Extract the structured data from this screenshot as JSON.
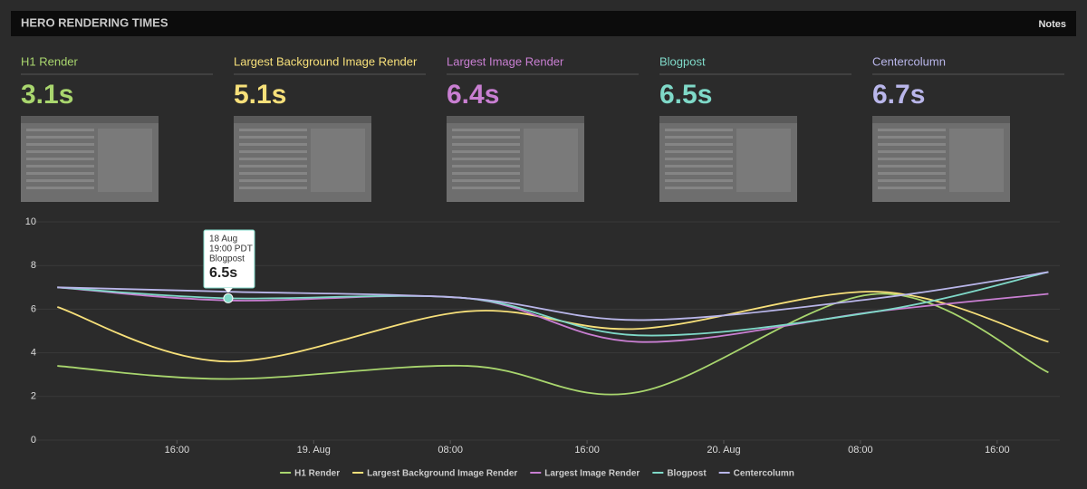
{
  "header": {
    "title": "HERO RENDERING TIMES",
    "notes": "Notes"
  },
  "cards": [
    {
      "label": "H1 Render",
      "value": "3.1s",
      "color": "#a9d66e"
    },
    {
      "label": "Largest Background Image Render",
      "value": "5.1s",
      "color": "#f7e07a"
    },
    {
      "label": "Largest Image Render",
      "value": "6.4s",
      "color": "#c97fd2"
    },
    {
      "label": "Blogpost",
      "value": "6.5s",
      "color": "#7fd9c8"
    },
    {
      "label": "Centercolumn",
      "value": "6.7s",
      "color": "#b9b6ea"
    }
  ],
  "chart_data": {
    "type": "line",
    "x": [
      "18 Aug 09:00",
      "18 Aug 19:00",
      "19 Aug 09:00",
      "19 Aug 19:00",
      "20 Aug 09:00",
      "20 Aug 19:00"
    ],
    "series": [
      {
        "name": "H1 Render",
        "color": "#a9d66e",
        "values": [
          3.4,
          2.8,
          3.4,
          2.2,
          6.7,
          3.1
        ]
      },
      {
        "name": "Largest Background Image Render",
        "color": "#f7e07a",
        "values": [
          6.1,
          3.6,
          5.9,
          5.1,
          6.8,
          4.5
        ]
      },
      {
        "name": "Largest Image Render",
        "color": "#c97fd2",
        "values": [
          7.0,
          6.4,
          6.5,
          4.5,
          5.9,
          6.7
        ]
      },
      {
        "name": "Blogpost",
        "color": "#7fd9c8",
        "values": [
          7.0,
          6.5,
          6.5,
          4.8,
          5.9,
          7.7
        ]
      },
      {
        "name": "Centercolumn",
        "color": "#b9b6ea",
        "values": [
          7.0,
          6.8,
          6.5,
          5.5,
          6.5,
          7.7
        ]
      }
    ],
    "xlim": [
      "18 Aug 07:30",
      "20 Aug 19:40"
    ],
    "xticks": [
      {
        "value": "18 Aug 16:00",
        "label": "16:00"
      },
      {
        "value": "19 Aug 00:00",
        "label": "19. Aug"
      },
      {
        "value": "19 Aug 08:00",
        "label": "08:00"
      },
      {
        "value": "19 Aug 16:00",
        "label": "16:00"
      },
      {
        "value": "20 Aug 00:00",
        "label": "20. Aug"
      },
      {
        "value": "20 Aug 08:00",
        "label": "08:00"
      },
      {
        "value": "20 Aug 16:00",
        "label": "16:00"
      }
    ],
    "ylim": [
      0,
      10
    ],
    "yticks": [
      0,
      2,
      4,
      6,
      8,
      10
    ],
    "grid": true,
    "tooltip": {
      "series": 3,
      "point": 1,
      "date": "18 Aug",
      "time": "19:00 PDT",
      "name": "Blogpost",
      "value_label": "6.5s"
    }
  }
}
